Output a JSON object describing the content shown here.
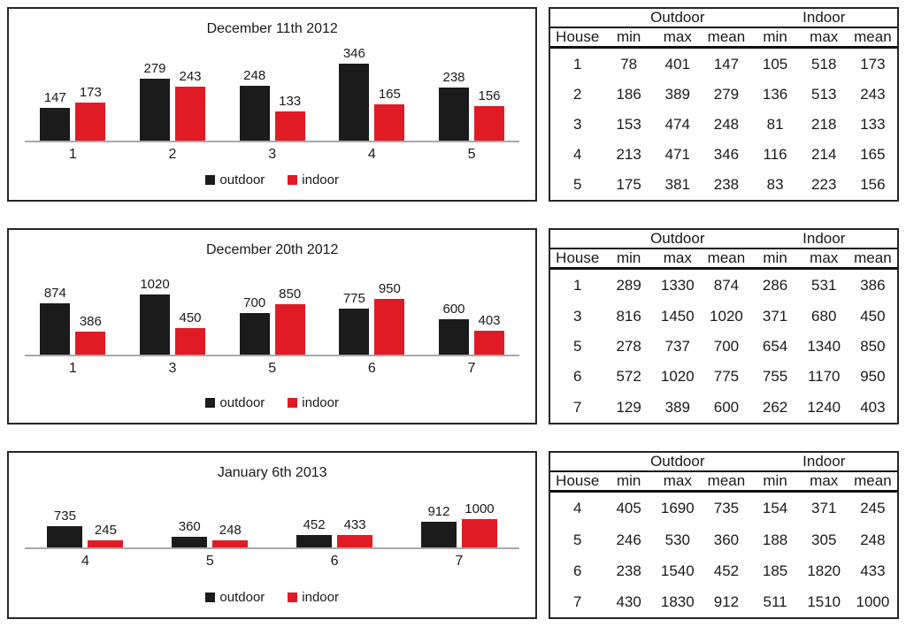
{
  "colors": {
    "outdoor": "#1b1b1b",
    "indoor": "#e11b23",
    "axis_line": "#a8a8a8",
    "panel_border": "#262626"
  },
  "chart_data": [
    {
      "type": "bar",
      "title": "December 11th 2012",
      "categories": [
        "1",
        "2",
        "3",
        "4",
        "5"
      ],
      "series": [
        {
          "name": "outdoor",
          "color": "#1b1b1b",
          "values": [
            147,
            279,
            248,
            346,
            238
          ]
        },
        {
          "name": "indoor",
          "color": "#e11b23",
          "values": [
            173,
            243,
            133,
            165,
            156
          ]
        }
      ],
      "xlabel": "",
      "ylabel": "",
      "ylim": [
        0,
        400
      ],
      "grid": false,
      "legend_position": "bottom",
      "data_labels": true
    },
    {
      "type": "bar",
      "title": "December 20th 2012",
      "categories": [
        "1",
        "3",
        "5",
        "6",
        "7"
      ],
      "series": [
        {
          "name": "outdoor",
          "color": "#1b1b1b",
          "values": [
            874,
            1020,
            700,
            775,
            600
          ]
        },
        {
          "name": "indoor",
          "color": "#e11b23",
          "values": [
            386,
            450,
            850,
            950,
            403
          ]
        }
      ],
      "xlabel": "",
      "ylabel": "",
      "ylim": [
        0,
        1500
      ],
      "grid": false,
      "legend_position": "bottom",
      "data_labels": true
    },
    {
      "type": "bar",
      "title": "January 6th 2013",
      "categories": [
        "4",
        "5",
        "6",
        "7"
      ],
      "series": [
        {
          "name": "outdoor",
          "color": "#1b1b1b",
          "values": [
            735,
            360,
            452,
            912
          ]
        },
        {
          "name": "indoor",
          "color": "#e11b23",
          "values": [
            245,
            248,
            433,
            1000
          ]
        }
      ],
      "xlabel": "",
      "ylabel": "",
      "ylim": [
        0,
        3000
      ],
      "grid": false,
      "legend_position": "bottom",
      "data_labels": true
    }
  ],
  "tables": [
    {
      "group_headers": [
        "Outdoor",
        "Indoor"
      ],
      "col_headers": [
        "House",
        "min",
        "max",
        "mean",
        "min",
        "max",
        "mean"
      ],
      "rows": [
        [
          "1",
          "78",
          "401",
          "147",
          "105",
          "518",
          "173"
        ],
        [
          "2",
          "186",
          "389",
          "279",
          "136",
          "513",
          "243"
        ],
        [
          "3",
          "153",
          "474",
          "248",
          "81",
          "218",
          "133"
        ],
        [
          "4",
          "213",
          "471",
          "346",
          "116",
          "214",
          "165"
        ],
        [
          "5",
          "175",
          "381",
          "238",
          "83",
          "223",
          "156"
        ]
      ]
    },
    {
      "group_headers": [
        "Outdoor",
        "Indoor"
      ],
      "col_headers": [
        "House",
        "min",
        "max",
        "mean",
        "min",
        "max",
        "mean"
      ],
      "rows": [
        [
          "1",
          "289",
          "1330",
          "874",
          "286",
          "531",
          "386"
        ],
        [
          "3",
          "816",
          "1450",
          "1020",
          "371",
          "680",
          "450"
        ],
        [
          "5",
          "278",
          "737",
          "700",
          "654",
          "1340",
          "850"
        ],
        [
          "6",
          "572",
          "1020",
          "775",
          "755",
          "1170",
          "950"
        ],
        [
          "7",
          "129",
          "389",
          "600",
          "262",
          "1240",
          "403"
        ]
      ]
    },
    {
      "group_headers": [
        "Outdoor",
        "Indoor"
      ],
      "col_headers": [
        "House",
        "min",
        "max",
        "mean",
        "min",
        "max",
        "mean"
      ],
      "rows": [
        [
          "4",
          "405",
          "1690",
          "735",
          "154",
          "371",
          "245"
        ],
        [
          "5",
          "246",
          "530",
          "360",
          "188",
          "305",
          "248"
        ],
        [
          "6",
          "238",
          "1540",
          "452",
          "185",
          "1820",
          "433"
        ],
        [
          "7",
          "430",
          "1830",
          "912",
          "511",
          "1510",
          "1000"
        ]
      ]
    }
  ]
}
